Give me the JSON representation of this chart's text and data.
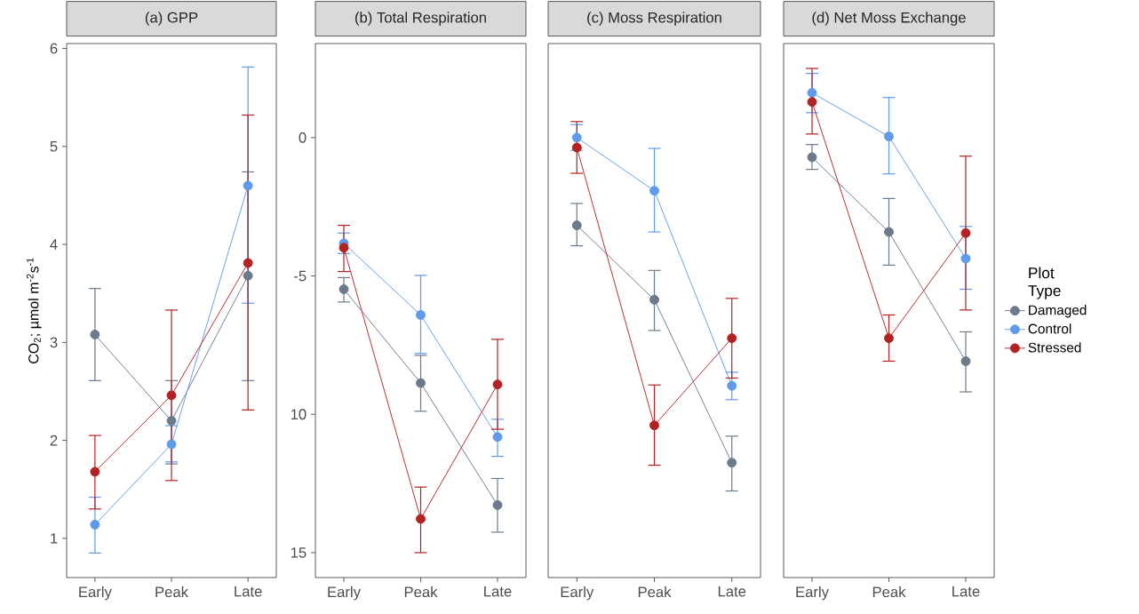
{
  "chart_data": [
    {
      "type": "line",
      "title": "(a) GPP",
      "ylabel": "CO$_{2}$; µmol m$^{-2}$s$^{-1}$",
      "categories": [
        "Early",
        "Peak",
        "Late"
      ],
      "ylim": [
        0.6,
        6.05
      ],
      "yticks": [
        1,
        2,
        3,
        4,
        5,
        6
      ],
      "marker": "circle",
      "line_style": "solid",
      "legend": false,
      "series": [
        {
          "color": "#6c7b8b",
          "values": [
            3.08,
            2.2,
            3.68
          ],
          "errors": [
            [
              2.61,
              3.55
            ],
            [
              1.76,
              2.61
            ],
            [
              2.61,
              4.74
            ]
          ]
        },
        {
          "color": "#5f9bea",
          "values": [
            1.14,
            1.96,
            4.6
          ],
          "errors": [
            [
              0.85,
              1.42
            ],
            [
              1.78,
              2.15
            ],
            [
              3.4,
              5.81
            ]
          ]
        },
        {
          "color": "#b22222",
          "values": [
            1.68,
            2.46,
            3.81
          ],
          "errors": [
            [
              1.3,
              2.05
            ],
            [
              1.59,
              3.33
            ],
            [
              2.31,
              5.32
            ]
          ]
        }
      ]
    },
    {
      "type": "line",
      "title": "(b) Total Respiration",
      "categories": [
        "Early",
        "Peak",
        "Late"
      ],
      "ylim": [
        -15.9,
        3.4
      ],
      "yticks": [
        0,
        -5,
        {
          "value": -10,
          "label": "10"
        },
        {
          "value": -15,
          "label": "15"
        }
      ],
      "marker": "circle",
      "line_style": "solid",
      "legend": false,
      "series": [
        {
          "color": "#6c7b8b",
          "values": [
            -5.48,
            -8.87,
            -13.28
          ],
          "errors": [
            [
              -5.94,
              -5.06
            ],
            [
              -9.89,
              -7.87
            ],
            [
              -14.26,
              -12.32
            ]
          ]
        },
        {
          "color": "#5f9bea",
          "values": [
            -3.82,
            -6.41,
            -10.82
          ],
          "errors": [
            [
              -4.19,
              -3.45
            ],
            [
              -7.8,
              -4.98
            ],
            [
              -11.52,
              -10.18
            ]
          ]
        },
        {
          "color": "#b22222",
          "values": [
            -3.98,
            -13.78,
            -8.92
          ],
          "errors": [
            [
              -4.84,
              -3.17
            ],
            [
              -15.0,
              -12.63
            ],
            [
              -10.54,
              -7.29
            ]
          ]
        }
      ]
    },
    {
      "type": "line",
      "title": "(c) Moss Respiration",
      "categories": [
        "Early",
        "Peak",
        "Late"
      ],
      "ylim": [
        -15.9,
        3.4
      ],
      "yticks": [
        0,
        -5,
        -10,
        -15
      ],
      "tick_labels": "x",
      "marker": "circle",
      "line_style": "solid",
      "legend": false,
      "series": [
        {
          "color": "#6c7b8b",
          "values": [
            -3.17,
            -5.86,
            -11.75
          ],
          "errors": [
            [
              -3.91,
              -2.38
            ],
            [
              -6.97,
              -4.8
            ],
            [
              -12.77,
              -10.79
            ]
          ]
        },
        {
          "color": "#5f9bea",
          "values": [
            0.0,
            -1.92,
            -8.97
          ],
          "errors": [
            [
              -0.46,
              0.47
            ],
            [
              -3.41,
              -0.39
            ],
            [
              -9.47,
              -8.48
            ]
          ]
        },
        {
          "color": "#b22222",
          "values": [
            -0.36,
            -10.4,
            -7.25
          ],
          "errors": [
            [
              -1.29,
              0.58
            ],
            [
              -11.84,
              -8.94
            ],
            [
              -8.69,
              -5.81
            ]
          ]
        }
      ]
    },
    {
      "type": "line",
      "title": "(d) Net Moss Exchange",
      "categories": [
        "Early",
        "Peak",
        "Late"
      ],
      "ylim": [
        -15.9,
        3.4
      ],
      "yticks": [
        0,
        -5,
        -10,
        -15
      ],
      "tick_labels": "x",
      "marker": "circle",
      "line_style": "solid",
      "legend": "right",
      "legend_title": "Plot Type",
      "series": [
        {
          "name": "Damaged",
          "color": "#6c7b8b",
          "values": [
            -0.71,
            -3.41,
            -8.08
          ],
          "errors": [
            [
              -1.15,
              -0.25
            ],
            [
              -4.61,
              -2.2
            ],
            [
              -9.19,
              -7.02
            ]
          ]
        },
        {
          "name": "Control",
          "color": "#5f9bea",
          "values": [
            1.62,
            0.04,
            -4.37
          ],
          "errors": [
            [
              0.9,
              2.32
            ],
            [
              -1.31,
              1.45
            ],
            [
              -5.48,
              -3.21
            ]
          ]
        },
        {
          "name": "Stressed",
          "color": "#b22222",
          "values": [
            1.29,
            -7.25,
            -3.45
          ],
          "errors": [
            [
              0.13,
              2.5
            ],
            [
              -8.08,
              -6.41
            ],
            [
              -6.23,
              -0.67
            ]
          ]
        }
      ]
    }
  ]
}
